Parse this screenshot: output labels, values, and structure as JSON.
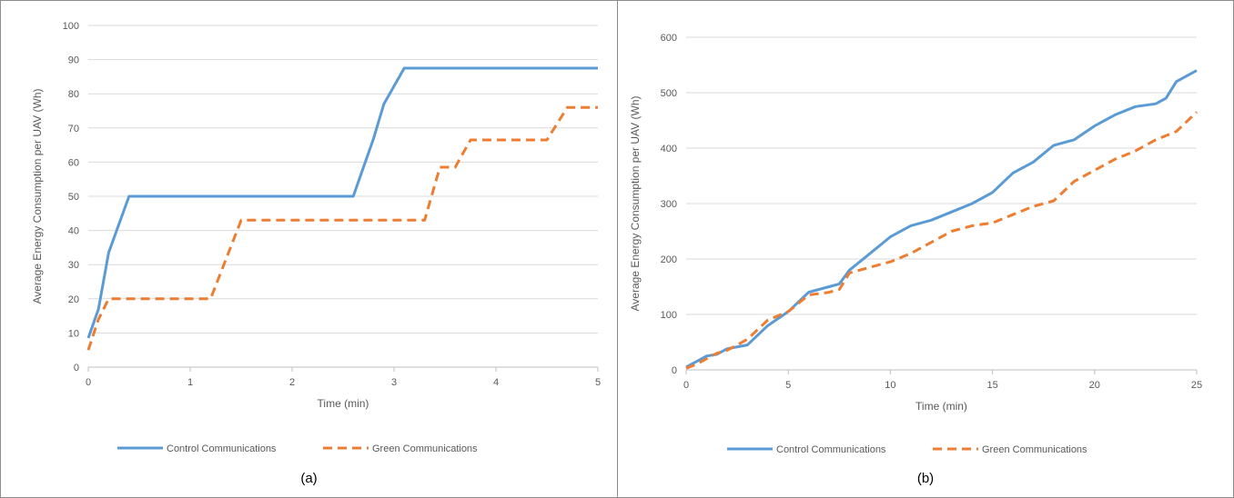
{
  "colors": {
    "control": "#5b9bd5",
    "green": "#ed7d31",
    "grid": "#d9d9d9",
    "axis": "#bfbfbf"
  },
  "chart_data": [
    {
      "type": "line",
      "caption": "(a)",
      "xlabel": "Time (min)",
      "ylabel": "Average Energy Consumption per UAV (Wh)",
      "xlim": [
        0,
        5
      ],
      "ylim": [
        0,
        100
      ],
      "xticks": [
        0,
        1,
        2,
        3,
        4,
        5
      ],
      "yticks": [
        0,
        10,
        20,
        30,
        40,
        50,
        60,
        70,
        80,
        90,
        100
      ],
      "grid": true,
      "legend": "bottom",
      "series": [
        {
          "name": "Control Communications",
          "style": "solid",
          "x": [
            0,
            0.1,
            0.2,
            0.4,
            2.6,
            2.8,
            2.9,
            3.1,
            5.0
          ],
          "y": [
            8.5,
            17,
            33.5,
            50,
            50,
            67,
            77,
            87.5,
            87.5
          ]
        },
        {
          "name": "Green Communications",
          "style": "dashed",
          "x": [
            0,
            0.1,
            0.2,
            1.2,
            1.5,
            3.3,
            3.45,
            3.6,
            3.75,
            4.5,
            4.7,
            5.0
          ],
          "y": [
            5,
            14,
            20,
            20,
            43,
            43,
            58.5,
            58.5,
            66.5,
            66.5,
            76,
            76
          ]
        }
      ]
    },
    {
      "type": "line",
      "caption": "(b)",
      "xlabel": "Time (min)",
      "ylabel": "Average Energy Consumption per UAV (Wh)",
      "xlim": [
        0,
        25
      ],
      "ylim": [
        0,
        600
      ],
      "xticks": [
        0,
        5,
        10,
        15,
        20,
        25
      ],
      "yticks": [
        0,
        100,
        200,
        300,
        400,
        500,
        600
      ],
      "grid": true,
      "legend": "bottom",
      "series": [
        {
          "name": "Control Communications",
          "style": "solid",
          "x": [
            0,
            0.5,
            1,
            1.5,
            2,
            3,
            4,
            5,
            6,
            7,
            7.5,
            8,
            9,
            10,
            11,
            12,
            13,
            14,
            15,
            16,
            17,
            18,
            19,
            20,
            21,
            22,
            23,
            23.5,
            24,
            25
          ],
          "y": [
            5,
            15,
            25,
            28,
            38,
            45,
            80,
            105,
            140,
            150,
            155,
            180,
            210,
            240,
            260,
            270,
            285,
            300,
            320,
            355,
            375,
            405,
            415,
            440,
            460,
            475,
            480,
            490,
            520,
            540
          ]
        },
        {
          "name": "Green Communications",
          "style": "dashed",
          "x": [
            0,
            0.5,
            1,
            1.5,
            2,
            3,
            4,
            5,
            6,
            7,
            7.5,
            8,
            9,
            10,
            11,
            12,
            13,
            14,
            15,
            16,
            17,
            18,
            19,
            20,
            21,
            22,
            23,
            24,
            25
          ],
          "y": [
            3,
            10,
            20,
            30,
            35,
            55,
            90,
            105,
            135,
            140,
            145,
            175,
            185,
            195,
            210,
            230,
            250,
            260,
            265,
            280,
            295,
            305,
            340,
            360,
            380,
            395,
            415,
            430,
            465
          ]
        }
      ]
    }
  ]
}
